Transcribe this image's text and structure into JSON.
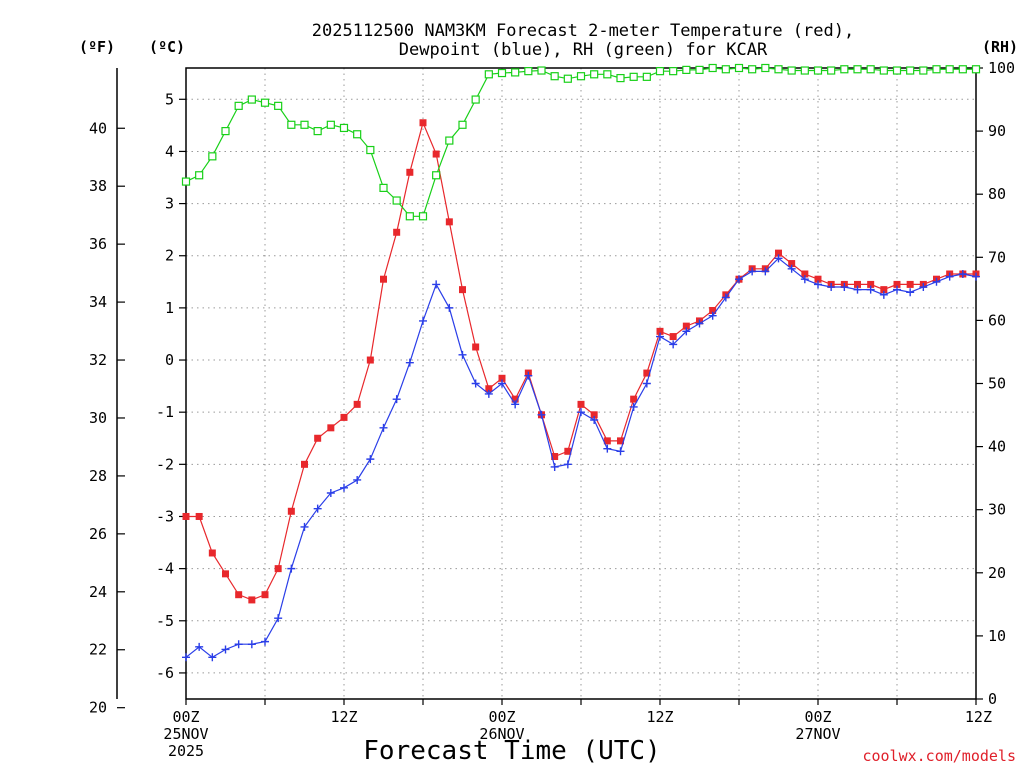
{
  "chart_data": {
    "type": "line",
    "title_line1": "2025112500 NAM3KM Forecast 2-meter Temperature (red),",
    "title_line2": "Dewpoint (blue), RH (green) for KCAR",
    "xlabel": "Forecast Time (UTC)",
    "credit": "coolwx.com/models",
    "units": {
      "fahrenheit": "(ºF)",
      "celsius": "(ºC)",
      "rh": "(RH)"
    },
    "x_unit": "forecast hour from 2025-11-25 00Z",
    "xlim": [
      0,
      60
    ],
    "x_ticks": [
      {
        "hour": 0,
        "lines": [
          "00Z",
          "25NOV",
          "2025"
        ]
      },
      {
        "hour": 12,
        "lines": [
          "12Z"
        ]
      },
      {
        "hour": 24,
        "lines": [
          "00Z",
          "26NOV"
        ]
      },
      {
        "hour": 36,
        "lines": [
          "12Z"
        ]
      },
      {
        "hour": 48,
        "lines": [
          "00Z",
          "27NOV"
        ]
      },
      {
        "hour": 60,
        "lines": [
          "12Z"
        ]
      }
    ],
    "ylim_c": [
      -6.5,
      5.6
    ],
    "y_ticks_c": [
      -6,
      -5,
      -4,
      -3,
      -2,
      -1,
      0,
      1,
      2,
      3,
      4,
      5
    ],
    "y_ticks_f": [
      20,
      22,
      24,
      26,
      28,
      30,
      32,
      34,
      36,
      38,
      40
    ],
    "ylim_rh": [
      0,
      100
    ],
    "y_ticks_rh": [
      0,
      10,
      20,
      30,
      40,
      50,
      60,
      70,
      80,
      90,
      100
    ],
    "hours": [
      0,
      1,
      2,
      3,
      4,
      5,
      6,
      7,
      8,
      9,
      10,
      11,
      12,
      13,
      14,
      15,
      16,
      17,
      18,
      19,
      20,
      21,
      22,
      23,
      24,
      25,
      26,
      27,
      28,
      29,
      30,
      31,
      32,
      33,
      34,
      35,
      36,
      37,
      38,
      39,
      40,
      41,
      42,
      43,
      44,
      45,
      46,
      47,
      48,
      49,
      50,
      51,
      52,
      53,
      54,
      55,
      56,
      57,
      58,
      59,
      60
    ],
    "series": [
      {
        "name": "Temperature",
        "unit": "C",
        "color": "#e8282c",
        "marker": "filled-square",
        "values": [
          -3.0,
          -3.0,
          -3.7,
          -4.1,
          -4.5,
          -4.6,
          -4.5,
          -4.0,
          -2.9,
          -2.0,
          -1.5,
          -1.3,
          -1.1,
          -0.85,
          0.0,
          1.55,
          2.45,
          3.6,
          4.55,
          3.95,
          2.65,
          1.35,
          0.25,
          -0.55,
          -0.35,
          -0.75,
          -0.25,
          -1.05,
          -1.85,
          -1.75,
          -0.85,
          -1.05,
          -1.55,
          -1.55,
          -0.75,
          -0.25,
          0.55,
          0.45,
          0.65,
          0.75,
          0.95,
          1.25,
          1.55,
          1.75,
          1.75,
          2.05,
          1.85,
          1.65,
          1.55,
          1.45,
          1.45,
          1.45,
          1.45,
          1.35,
          1.45,
          1.45,
          1.45,
          1.55,
          1.65,
          1.65,
          1.65
        ]
      },
      {
        "name": "Dewpoint",
        "unit": "C",
        "color": "#2a3ee8",
        "marker": "plus",
        "values": [
          -5.7,
          -5.5,
          -5.7,
          -5.55,
          -5.45,
          -5.45,
          -5.4,
          -4.95,
          -4.0,
          -3.2,
          -2.85,
          -2.55,
          -2.45,
          -2.3,
          -1.9,
          -1.3,
          -0.75,
          -0.05,
          0.75,
          1.45,
          1.0,
          0.1,
          -0.45,
          -0.65,
          -0.45,
          -0.85,
          -0.3,
          -1.05,
          -2.05,
          -2.0,
          -1.0,
          -1.15,
          -1.7,
          -1.75,
          -0.9,
          -0.45,
          0.45,
          0.3,
          0.55,
          0.7,
          0.85,
          1.2,
          1.55,
          1.7,
          1.7,
          1.95,
          1.75,
          1.55,
          1.45,
          1.4,
          1.4,
          1.35,
          1.35,
          1.25,
          1.35,
          1.3,
          1.4,
          1.5,
          1.6,
          1.65,
          1.6
        ]
      },
      {
        "name": "RH",
        "unit": "%",
        "color": "#18d018",
        "marker": "open-square",
        "values": [
          82,
          83,
          86,
          90,
          94,
          95,
          94.5,
          94,
          91,
          91,
          90,
          91,
          90.5,
          89.5,
          87,
          81,
          79,
          76.5,
          76.5,
          83,
          88.5,
          91,
          95,
          99,
          99.2,
          99.3,
          99.5,
          99.6,
          98.7,
          98.3,
          98.7,
          99,
          99,
          98.4,
          98.6,
          98.6,
          99.5,
          99.5,
          99.7,
          99.7,
          100,
          99.8,
          100,
          99.8,
          100,
          99.8,
          99.6,
          99.6,
          99.6,
          99.6,
          99.8,
          99.8,
          99.8,
          99.6,
          99.6,
          99.6,
          99.6,
          99.8,
          99.8,
          99.8,
          99.8
        ]
      }
    ]
  }
}
